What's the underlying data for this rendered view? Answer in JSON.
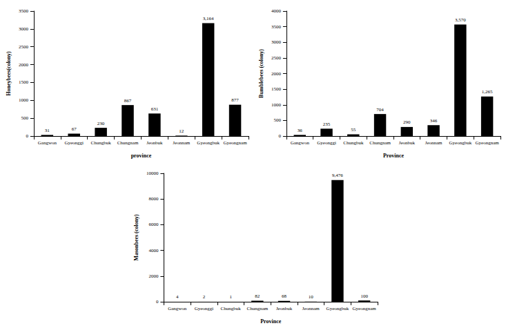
{
  "chart_data": [
    {
      "type": "bar",
      "ylabel": "Honeybees(colony)",
      "xlabel": "province",
      "categories": [
        "Gangwon",
        "Gyeonggi",
        "Chungbuk",
        "Chungnam",
        "Jeonbuk",
        "Jeonnam",
        "Gyeongbuk",
        "Gyeongnam"
      ],
      "values": [
        31,
        67,
        230,
        867,
        631,
        12,
        3164,
        877
      ],
      "value_labels": [
        "31",
        "67",
        "230",
        "867",
        "631",
        "12",
        "3,164",
        "877"
      ],
      "color": "#000000",
      "ylim": [
        0,
        3500
      ],
      "yticks": [
        0,
        500,
        1000,
        1500,
        2000,
        2500,
        3000,
        3500
      ],
      "grid": false,
      "data_labels": true
    },
    {
      "type": "bar",
      "ylabel": "Bumblebees (colony)",
      "xlabel": "Province",
      "categories": [
        "Gangwon",
        "Gyeonggi",
        "Chungbuk",
        "Chungnam",
        "Jeonbuk",
        "Jeonnam",
        "Gyeongbuk",
        "Gyeongnam"
      ],
      "values": [
        36,
        235,
        55,
        704,
        290,
        346,
        3570,
        1265
      ],
      "value_labels": [
        "36",
        "235",
        "55",
        "704",
        "290",
        "346",
        "3,570",
        "1,265"
      ],
      "color": "#000000",
      "ylim": [
        0,
        4000
      ],
      "yticks": [
        0,
        500,
        1000,
        1500,
        2000,
        2500,
        3000,
        3500,
        4000
      ],
      "grid": false,
      "data_labels": true
    },
    {
      "type": "bar",
      "ylabel": "Masonbees (colony)",
      "xlabel": "Province",
      "categories": [
        "Gangwon",
        "Gyeonggi",
        "Chungbuk",
        "Chungnam",
        "Jeonbuk",
        "Jeonnam",
        "Gyeongbuk",
        "Gyeongnam"
      ],
      "values": [
        4,
        2,
        1,
        82,
        68,
        10,
        9476,
        100
      ],
      "value_labels": [
        "4",
        "2",
        "1",
        "82",
        "68",
        "10",
        "9,476",
        "100"
      ],
      "color": "#000000",
      "ylim": [
        0,
        10000
      ],
      "yticks": [
        0,
        2000,
        4000,
        6000,
        8000,
        10000
      ],
      "grid": false,
      "data_labels": true
    }
  ]
}
